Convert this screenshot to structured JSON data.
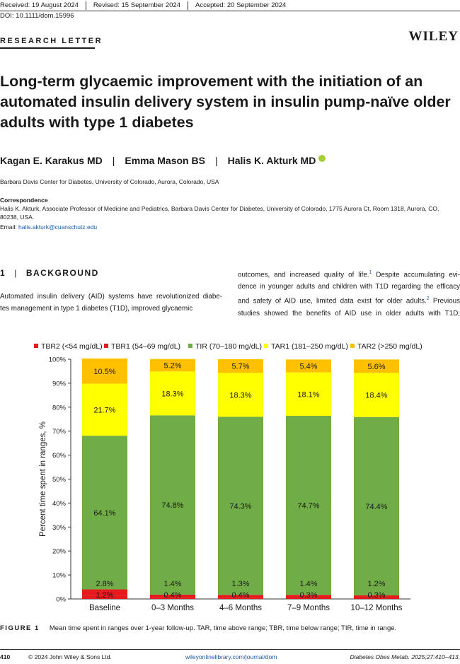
{
  "header": {
    "received": "Received: 19 August 2024",
    "revised": "Revised: 15 September 2024",
    "accepted": "Accepted: 20 September 2024",
    "doi": "DOI: 10.1111/dom.15996",
    "section_label": "RESEARCH LETTER",
    "publisher": "WILEY"
  },
  "article": {
    "title": "Long-term glycaemic improvement with the initiation of an automated insulin delivery system in insulin pump-naïve older adults with type 1 diabetes",
    "authors": [
      "Kagan E. Karakus MD",
      "Emma Mason BS",
      "Halis K. Akturk MD"
    ],
    "author_sep": "|",
    "affiliation": "Barbara Davis Center for Diabetes, University of Colorado, Aurora, Colorado, USA",
    "correspondence_heading": "Correspondence",
    "correspondence_text": "Halis K. Akturk, Associate Professor of Medicine and Pediatrics, Barbara Davis Center for Diabetes, University of Colorado, 1775 Aurora Ct, Room 1318, Aurora, CO, 80238, USA.",
    "email_label": "Email: ",
    "email": "halis.akturk@cuanschutz.edu"
  },
  "section1": {
    "number": "1",
    "bar": "|",
    "heading": "BACKGROUND",
    "left_lines": [
      "Automated insulin delivery (AID) systems have revolutionized diabe-",
      "tes management in type 1 diabetes (T1D), improved glycaemic"
    ],
    "right_lines": [
      "outcomes, and increased quality of life.",
      " Despite accumulating evi-",
      "dence in younger adults and children with T1D regarding the efficacy",
      "and safety of AID use, limited data exist for older adults.",
      " Previous",
      "studies showed the benefits of AID use in older adults with T1D;"
    ],
    "ref1": "1",
    "ref2": "2"
  },
  "chart_data": {
    "type": "bar",
    "stacked": true,
    "categories": [
      "Baseline",
      "0–3 Months",
      "4–6 Months",
      "7–9 Months",
      "10–12 Months"
    ],
    "series": [
      {
        "name": "TBR2 (<54 mg/dL)",
        "color": "#e41a1c",
        "values": [
          1.2,
          0.4,
          0.4,
          0.3,
          0.3
        ]
      },
      {
        "name": "TBR1 (54–69 mg/dL)",
        "color": "#e41a1c",
        "values": [
          2.8,
          1.4,
          1.3,
          1.4,
          1.2
        ]
      },
      {
        "name": "TIR (70–180 mg/dL)",
        "color": "#70ad47",
        "values": [
          64.1,
          74.8,
          74.3,
          74.7,
          74.4
        ]
      },
      {
        "name": "TAR1 (181–250 mg/dL)",
        "color": "#ffff00",
        "values": [
          21.7,
          18.3,
          18.3,
          18.1,
          18.4
        ]
      },
      {
        "name": "TAR2 (>250 mg/dL)",
        "color": "#ffc000",
        "values": [
          10.5,
          5.2,
          5.7,
          5.4,
          5.6
        ]
      }
    ],
    "value_labels": [
      [
        "1.2%",
        "0.4%",
        "0.4%",
        "0.3%",
        "0.3%"
      ],
      [
        "2.8%",
        "1.4%",
        "1.3%",
        "1.4%",
        "1.2%"
      ],
      [
        "64.1%",
        "74.8%",
        "74.3%",
        "74.7%",
        "74.4%"
      ],
      [
        "21.7%",
        "18.3%",
        "18.3%",
        "18.1%",
        "18.4%"
      ],
      [
        "10.5%",
        "5.2%",
        "5.7%",
        "5.4%",
        "5.6%"
      ]
    ],
    "ylabel": "Percent time spent in ranges, %",
    "ylim": [
      0,
      100
    ],
    "yticks": [
      "0%",
      "10%",
      "20%",
      "30%",
      "40%",
      "50%",
      "60%",
      "70%",
      "80%",
      "90%",
      "100%"
    ],
    "legend_position": "top"
  },
  "figure": {
    "label": "FIGURE 1",
    "caption": "Mean time spent in ranges over 1-year follow-up. TAR, time above range; TBR, time below range; TIR, time in range."
  },
  "footer": {
    "page": "410",
    "copyright": "© 2024 John Wiley & Sons Ltd.",
    "url": "wileyonlinelibrary.com/journal/dom",
    "citation": "Diabetes Obes Metab. 2025;27:410–413."
  }
}
